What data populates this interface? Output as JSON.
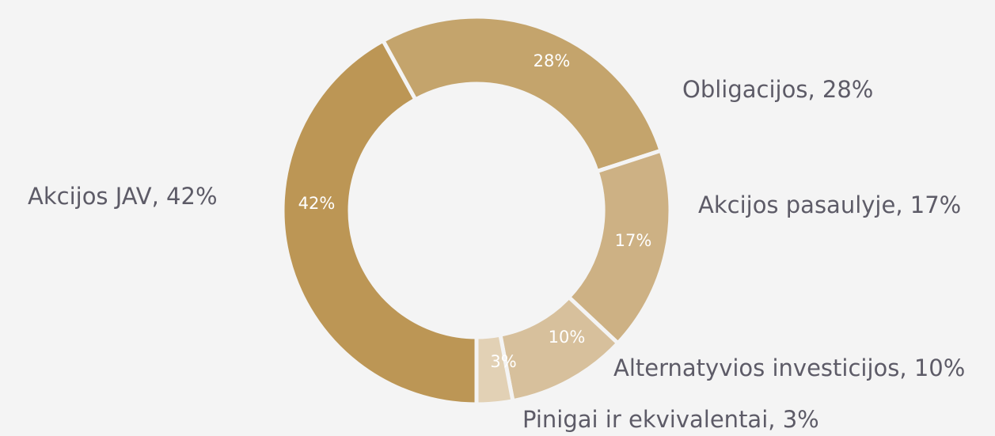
{
  "chart_data": {
    "type": "donut",
    "categories": [
      "Akcijos JAV",
      "Obligacijos",
      "Akcijos pasaulyje",
      "Alternatyvios investicijos",
      "Pinigai ir ekvivalentai"
    ],
    "values": [
      42,
      28,
      17,
      10,
      3
    ],
    "value_labels": [
      "42%",
      "28%",
      "17%",
      "10%",
      "3%"
    ],
    "labels": [
      "Akcijos JAV, 42%",
      "Obligacijos, 28%",
      "Akcijos pasaulyje, 17%",
      "Alternatyvios investicijos, 10%",
      "Pinigai ir ekvivalentai, 3%"
    ],
    "colors": [
      "#bc9655",
      "#c4a46c",
      "#cdb184",
      "#d7c09c",
      "#e2d1b5"
    ]
  }
}
